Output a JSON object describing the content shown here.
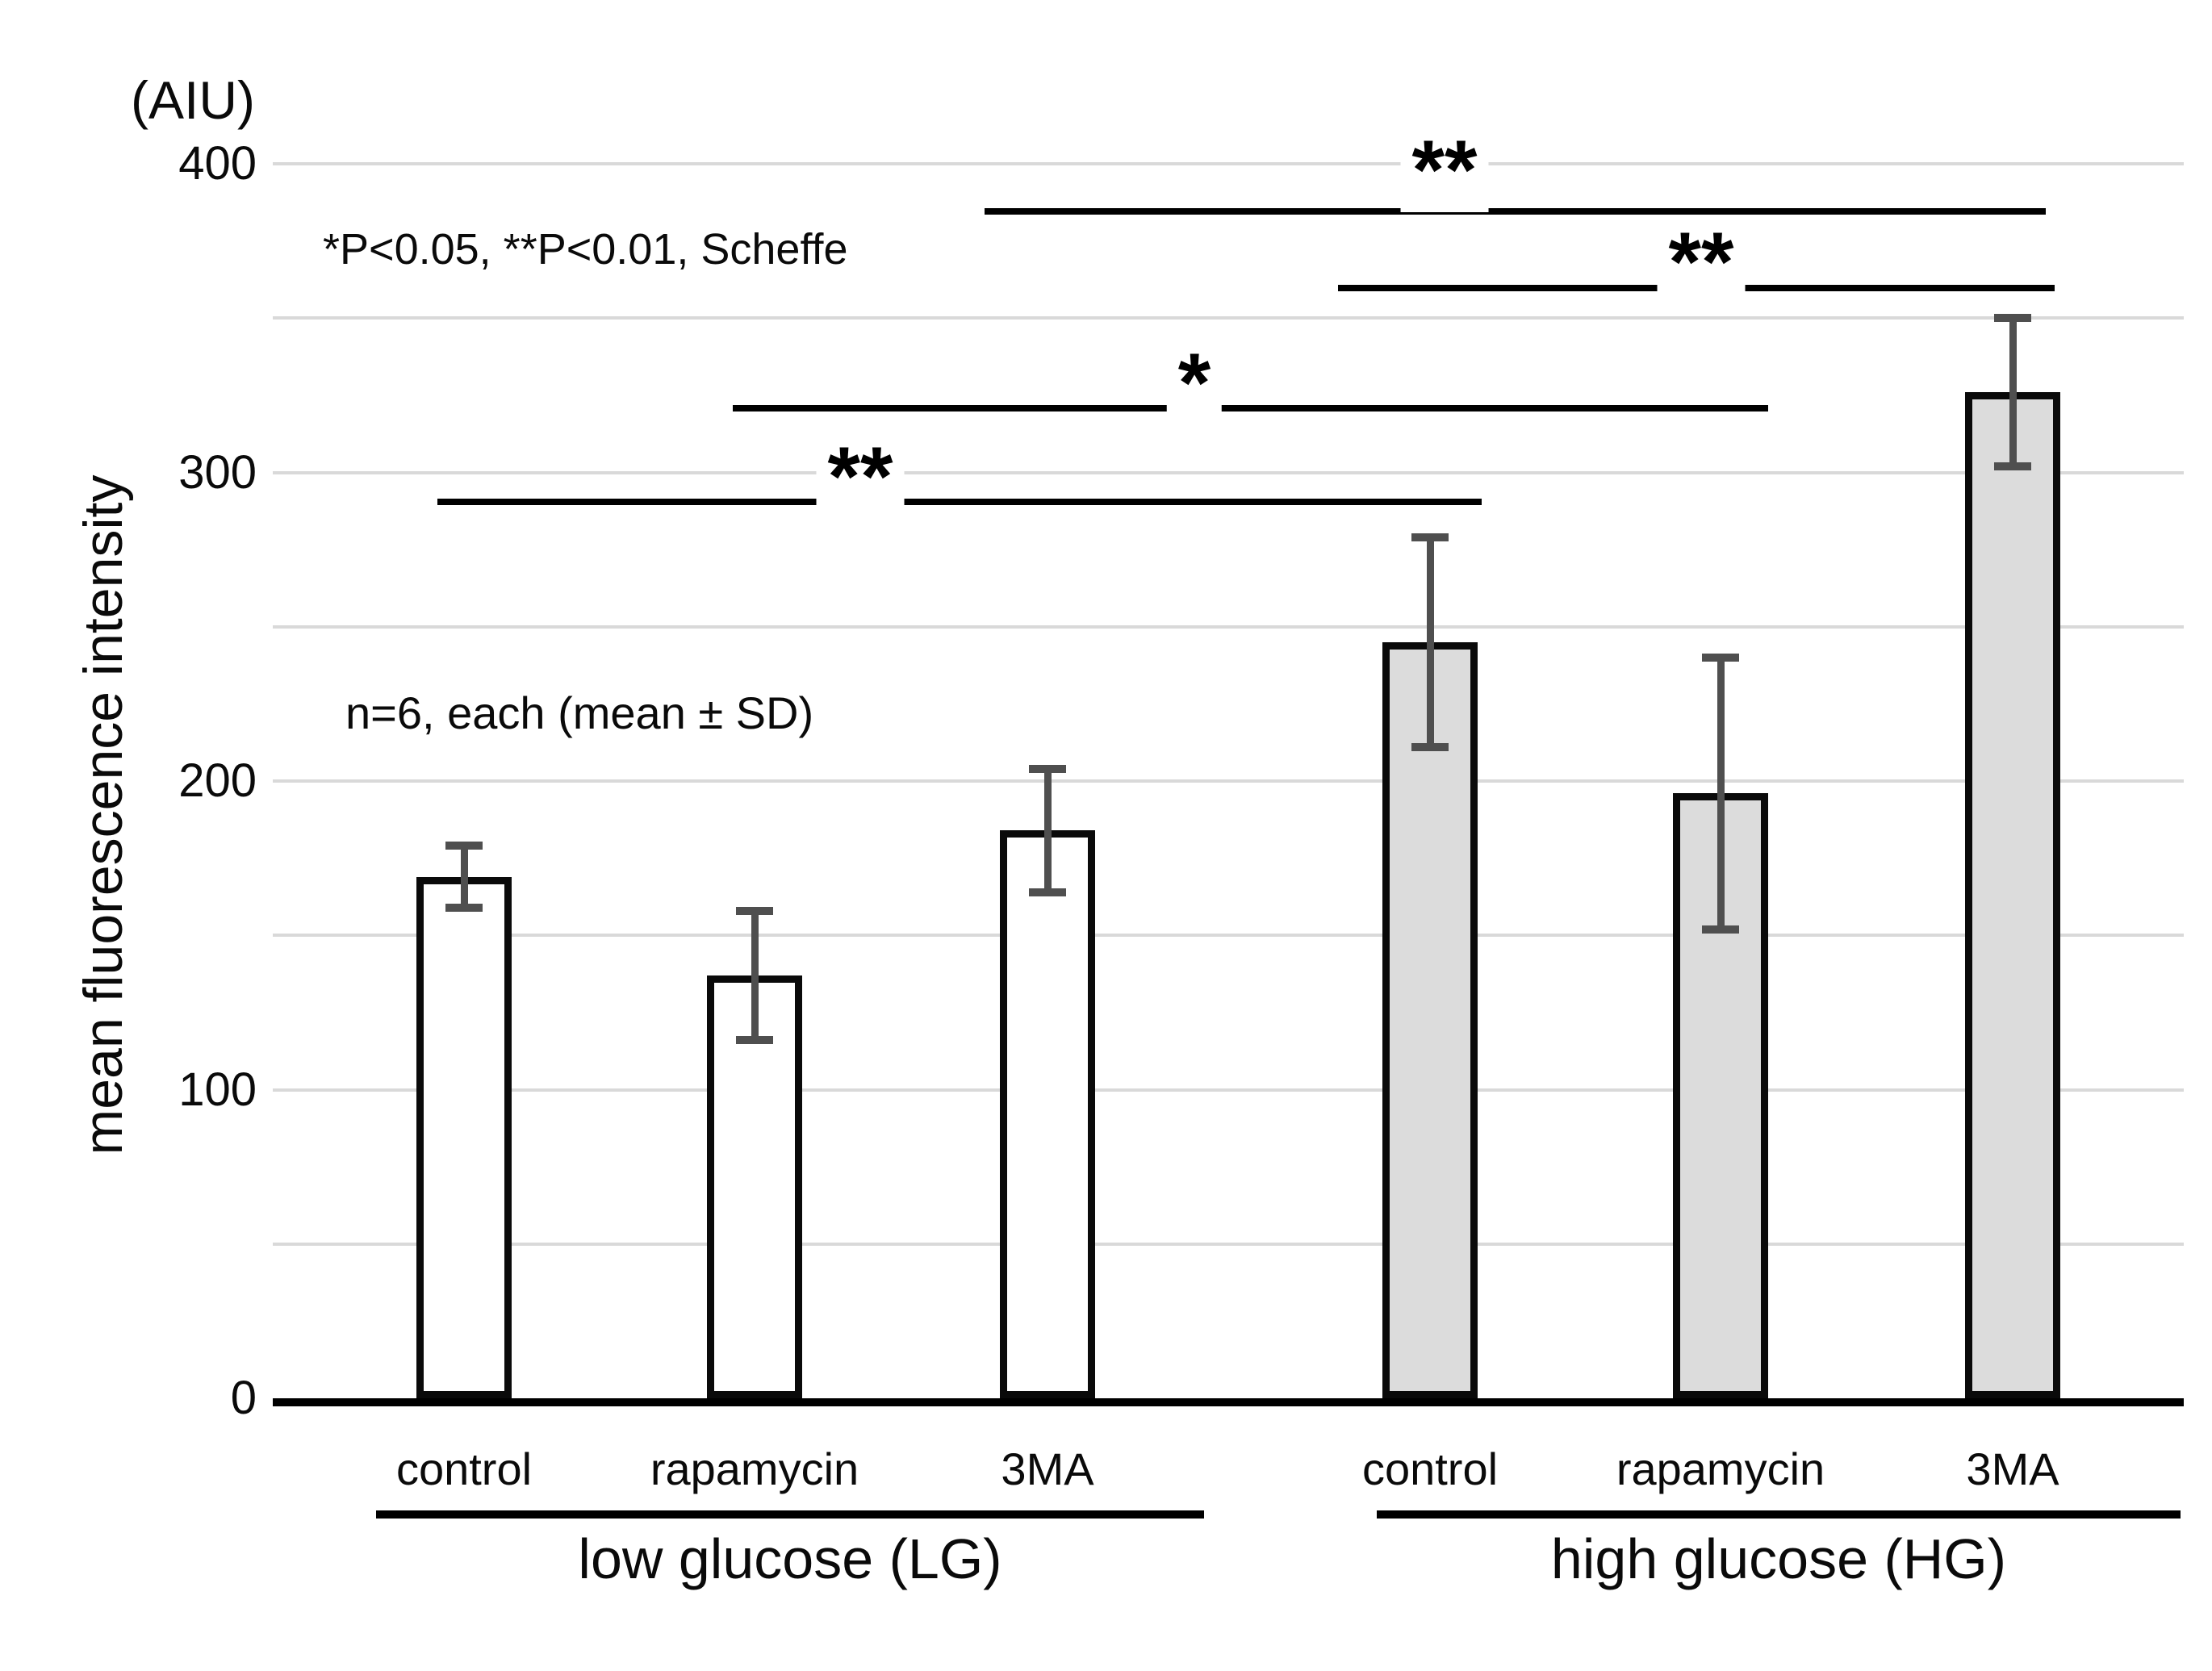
{
  "figure": {
    "unit_label": "(AIU)",
    "y_axis_title": "mean fluorescence intensity",
    "notes": {
      "significance": "*P<0.05, **P<0.01, Scheffe",
      "sample": "n=6, each (mean ± SD)"
    }
  },
  "chart_data": {
    "type": "bar",
    "title": "",
    "xlabel": "",
    "ylabel": "mean fluorescence intensity",
    "unit": "AIU",
    "ylim": [
      0,
      400
    ],
    "yticks": [
      0,
      100,
      200,
      300,
      400
    ],
    "gridline_interval": 50,
    "grid": true,
    "legend_position": "none",
    "error_bars": "mean ± SD",
    "n_per_group": 6,
    "categories": [
      "control",
      "rapamycin",
      "3MA"
    ],
    "groups": [
      {
        "name": "low glucose (LG)",
        "bar_fill": "#ffffff"
      },
      {
        "name": "high glucose (HG)",
        "bar_fill": "#dcdcdc"
      }
    ],
    "bars": [
      {
        "group": "low glucose (LG)",
        "label": "control",
        "mean": 169,
        "sd": 10
      },
      {
        "group": "low glucose (LG)",
        "label": "rapamycin",
        "mean": 137,
        "sd": 21
      },
      {
        "group": "low glucose (LG)",
        "label": "3MA",
        "mean": 184,
        "sd": 20
      },
      {
        "group": "high glucose (HG)",
        "label": "control",
        "mean": 245,
        "sd": 34
      },
      {
        "group": "high glucose (HG)",
        "label": "rapamycin",
        "mean": 196,
        "sd": 44
      },
      {
        "group": "high glucose (HG)",
        "label": "3MA",
        "mean": 326,
        "sd": 24
      }
    ],
    "comparisons": [
      {
        "between": [
          "LG 3MA",
          "HG 3MA"
        ],
        "label": "**",
        "p": "P<0.01"
      },
      {
        "between": [
          "HG control",
          "HG 3MA"
        ],
        "label": "**",
        "p": "P<0.01"
      },
      {
        "between": [
          "LG rapamycin",
          "HG rapamycin"
        ],
        "label": "*",
        "p": "P<0.05"
      },
      {
        "between": [
          "LG control",
          "HG control"
        ],
        "label": "**",
        "p": "P<0.01"
      }
    ]
  },
  "colors": {
    "background": "#ffffff",
    "gridline": "#d9d9d9",
    "axis": "#000000",
    "bar_border": "#0a0a0a",
    "bar_fill_lg": "#ffffff",
    "bar_fill_hg": "#dcdcdc",
    "error_bar": "#4f4f4f",
    "significance_line": "#000000",
    "text": "#0a0a0a"
  }
}
